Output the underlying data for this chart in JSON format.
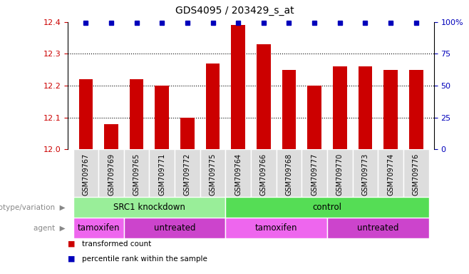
{
  "title": "GDS4095 / 203429_s_at",
  "samples": [
    "GSM709767",
    "GSM709769",
    "GSM709765",
    "GSM709771",
    "GSM709772",
    "GSM709775",
    "GSM709764",
    "GSM709766",
    "GSM709768",
    "GSM709777",
    "GSM709770",
    "GSM709773",
    "GSM709774",
    "GSM709776"
  ],
  "bar_values": [
    12.22,
    12.08,
    12.22,
    12.2,
    12.1,
    12.27,
    12.39,
    12.33,
    12.25,
    12.2,
    12.26,
    12.26,
    12.25,
    12.25
  ],
  "bar_color": "#cc0000",
  "percentile_color": "#0000bb",
  "ylim_left": [
    12.0,
    12.4
  ],
  "ylim_right": [
    0,
    100
  ],
  "yticks_left": [
    12.0,
    12.1,
    12.2,
    12.3,
    12.4
  ],
  "yticks_right": [
    0,
    25,
    50,
    75,
    100
  ],
  "genotype_groups": [
    {
      "label": "SRC1 knockdown",
      "start": 0,
      "end": 6,
      "color": "#99ee99"
    },
    {
      "label": "control",
      "start": 6,
      "end": 14,
      "color": "#55dd55"
    }
  ],
  "agent_groups": [
    {
      "label": "tamoxifen",
      "start": 0,
      "end": 2,
      "color": "#ee66ee"
    },
    {
      "label": "untreated",
      "start": 2,
      "end": 6,
      "color": "#cc44cc"
    },
    {
      "label": "tamoxifen",
      "start": 6,
      "end": 10,
      "color": "#ee66ee"
    },
    {
      "label": "untreated",
      "start": 10,
      "end": 14,
      "color": "#cc44cc"
    }
  ],
  "legend_items": [
    {
      "label": "transformed count",
      "color": "#cc0000"
    },
    {
      "label": "percentile rank within the sample",
      "color": "#0000bb"
    }
  ],
  "background_color": "#ffffff",
  "tick_label_color_left": "#cc0000",
  "tick_label_color_right": "#0000bb",
  "bar_width": 0.55,
  "xtick_bg_color": "#dddddd",
  "genotype_label": "genotype/variation",
  "agent_label": "agent"
}
